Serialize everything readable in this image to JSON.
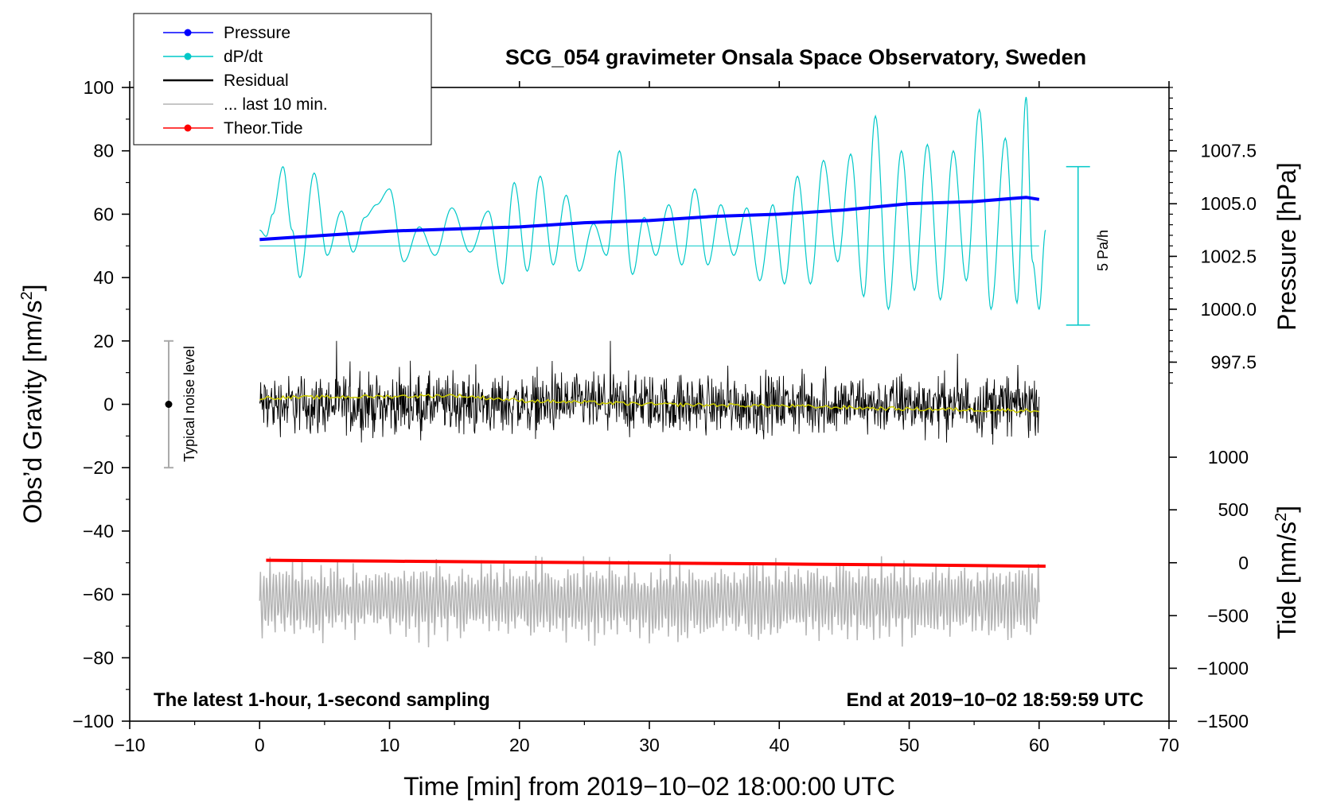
{
  "chart_data": {
    "type": "line",
    "title": "SCG_054 gravimeter Onsala Space Observatory, Sweden",
    "xlabel": "Time [min] from 2019−10−02 18:00:00 UTC",
    "ylabel_left": "Obs’d Gravity [nm/s",
    "ylabel_left_sup": "2",
    "ylabel_left_end": "]",
    "ylabel_right_top": "Pressure [hPa]",
    "ylabel_right_bottom": "Tide [nm/s",
    "ylabel_right_bottom_sup": "2",
    "ylabel_right_bottom_end": "]",
    "xlim": [
      -10,
      70
    ],
    "ylim": [
      -100,
      100
    ],
    "x_ticks": [
      -10,
      0,
      10,
      20,
      30,
      40,
      50,
      60,
      70
    ],
    "x_tick_labels": [
      "−10",
      "0",
      "10",
      "20",
      "30",
      "40",
      "50",
      "60",
      "70"
    ],
    "y_ticks": [
      100,
      80,
      60,
      40,
      20,
      0,
      -20,
      -40,
      -60,
      -80,
      -100
    ],
    "y_tick_labels": [
      "100",
      "80",
      "60",
      "40",
      "20",
      "0",
      "−20",
      "−40",
      "−60",
      "−80",
      "−100"
    ],
    "pressure_axis": {
      "ticks": [
        1007.5,
        1005.0,
        1002.5,
        1000.0,
        997.5
      ],
      "tick_labels": [
        "1007.5",
        "1005.0",
        "1002.5",
        "1000.0",
        "997.5"
      ],
      "gravity_equiv": [
        80,
        63.3,
        46.7,
        30,
        13.3
      ],
      "range_hpa": [
        996.5,
        1009.0
      ]
    },
    "tide_axis": {
      "ticks": [
        1000,
        500,
        0,
        -500,
        -1000,
        -1500
      ],
      "tick_labels": [
        "1000",
        "500",
        "0",
        "−500",
        "−1000",
        "−1500"
      ],
      "gravity_equiv": [
        -16.7,
        -33.3,
        -50,
        -66.7,
        -83.3,
        -100
      ]
    },
    "legend": [
      {
        "label": "Pressure",
        "color": "#0000ff",
        "marker": true
      },
      {
        "label": "dP/dt",
        "color": "#00c8c8",
        "marker": true
      },
      {
        "label": "Residual",
        "color": "#000000",
        "marker": false
      },
      {
        "label": "... last 10 min.",
        "color": "#b4b4b4",
        "marker": false
      },
      {
        "label": "Theor.Tide",
        "color": "#ff0000",
        "marker": true
      }
    ],
    "series": [
      {
        "name": "Pressure",
        "color": "#0000ff",
        "unit": "hPa",
        "x": [
          0,
          5,
          10,
          15,
          20,
          25,
          30,
          35,
          40,
          45,
          50,
          55,
          59,
          60
        ],
        "y": [
          1003.3,
          1003.5,
          1003.7,
          1003.8,
          1003.9,
          1004.1,
          1004.2,
          1004.4,
          1004.5,
          1004.7,
          1005.0,
          1005.1,
          1005.3,
          1005.2
        ]
      },
      {
        "name": "dP/dt",
        "color": "#00c8c8",
        "baseline_y": 50,
        "x": [
          0,
          0.5,
          1,
          1.8,
          2.5,
          3.1,
          4.2,
          5.2,
          6.3,
          7.2,
          8.1,
          9.0,
          10.0,
          11.1,
          12.3,
          13.5,
          14.8,
          16.2,
          17.6,
          18.7,
          19.6,
          20.6,
          21.6,
          22.6,
          23.6,
          24.6,
          25.7,
          26.7,
          27.7,
          28.7,
          29.6,
          30.5,
          31.5,
          32.5,
          33.5,
          34.5,
          35.5,
          36.5,
          37.5,
          38.5,
          39.5,
          40.4,
          41.4,
          42.4,
          43.4,
          44.5,
          45.5,
          46.5,
          47.4,
          48.4,
          49.4,
          50.4,
          51.4,
          52.4,
          53.4,
          54.4,
          55.4,
          56.3,
          57.4,
          58.3,
          59.0,
          59.5,
          60.0,
          60.5
        ],
        "y": [
          55,
          53,
          60,
          75,
          55,
          40,
          73,
          47,
          61,
          48,
          59,
          63,
          68,
          45,
          56,
          47,
          62,
          48,
          61,
          38,
          70,
          42,
          72,
          44,
          66,
          42,
          57,
          47,
          80,
          41,
          59,
          47,
          63,
          44,
          68,
          44,
          63,
          47,
          62,
          39,
          63,
          38,
          72,
          38,
          77,
          45,
          79,
          34,
          91,
          30,
          80,
          36,
          82,
          33,
          80,
          39,
          93,
          30,
          84,
          32,
          97,
          45,
          30,
          55
        ]
      },
      {
        "name": "Residual",
        "color": "#000000",
        "x_range": [
          0,
          60
        ],
        "y_range": [
          -22,
          20
        ],
        "mean_y": 0
      },
      {
        "name": "Residual running mean",
        "color": "#cccc00",
        "x": [
          0,
          10,
          15,
          20,
          30,
          40,
          50,
          60
        ],
        "y": [
          2,
          2.5,
          2.8,
          1.2,
          0,
          -0.5,
          -1.5,
          -2
        ]
      },
      {
        "name": "... last 10 min.",
        "color": "#b4b4b4",
        "x_range": [
          0,
          60
        ],
        "center_y": -62,
        "y_range": [
          -82,
          -45
        ]
      },
      {
        "name": "Theor.Tide",
        "color": "#ff0000",
        "unit": "nm/s2",
        "x": [
          0.5,
          10,
          20,
          30,
          40,
          50,
          60.5
        ],
        "y_gravity": [
          -49.2,
          -49.5,
          -49.8,
          -50.1,
          -50.4,
          -50.7,
          -51.1
        ]
      }
    ],
    "noise_bar": {
      "label": "Typical noise level",
      "x": -7,
      "y_low": -20,
      "y_high": 20,
      "center": 0
    },
    "scale_bar": {
      "label": "5 Pa/h",
      "x": 63,
      "y_low": 25,
      "y_high": 75
    },
    "annotations": {
      "left_bottom": "The latest 1-hour, 1-second sampling",
      "right_bottom": "End at 2019−10−02 18:59:59 UTC"
    }
  }
}
